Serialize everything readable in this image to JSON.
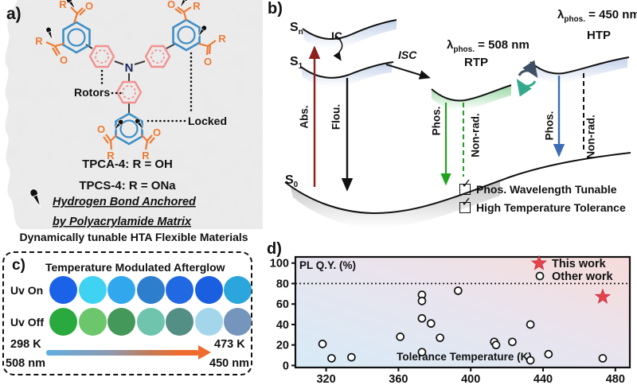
{
  "chart_data": {
    "type": "scatter",
    "panel": "d",
    "xlabel": "Tolerance Temperature (K)",
    "ylabel": "PL Q.Y. (%)",
    "xticks": [
      320,
      360,
      400,
      440,
      480
    ],
    "yticks": [
      0,
      20,
      40,
      60,
      80,
      100
    ],
    "xlim": [
      303,
      488
    ],
    "ylim": [
      -2,
      106
    ],
    "grid": false,
    "reference_line": {
      "y": 80,
      "style": "dotted"
    },
    "legend": {
      "position": "top-right"
    },
    "background_gradient": [
      "#d7ebf7",
      "#f7dbd9"
    ],
    "series": [
      {
        "name": "This work",
        "marker": "star",
        "color": "#e8434d",
        "points": [
          [
            473,
            67
          ]
        ]
      },
      {
        "name": "Other work",
        "marker": "open-circle",
        "color": "#111111",
        "points": [
          [
            318,
            21
          ],
          [
            323,
            7
          ],
          [
            334,
            8
          ],
          [
            361,
            28
          ],
          [
            373,
            69
          ],
          [
            373,
            63
          ],
          [
            373,
            46
          ],
          [
            378,
            41
          ],
          [
            373,
            13
          ],
          [
            383,
            27
          ],
          [
            393,
            73
          ],
          [
            413,
            23
          ],
          [
            414,
            20
          ],
          [
            423,
            23
          ],
          [
            433,
            40
          ],
          [
            433,
            5
          ],
          [
            443,
            11
          ],
          [
            473,
            7
          ]
        ]
      }
    ]
  },
  "figure": {
    "panel_a": {
      "label": "a)",
      "molecule": {
        "n": "N",
        "r": "R",
        "o": "O"
      },
      "annotations": {
        "rotors": "Rotors",
        "locked": "Locked"
      },
      "compounds": [
        "TPCA-4: R = OH",
        "TPCS-4: R = ONa"
      ],
      "anchor_note": [
        "Hydrogen Bond Anchored",
        "by Polyacrylamide Matrix"
      ],
      "caption": "Dynamically tunable HTA Flexible Materials",
      "icons": {
        "pin": "push-pin"
      }
    },
    "panel_b": {
      "label": "b)",
      "states": {
        "s": "S",
        "sub_n": "n",
        "sub_1": "1",
        "sub_0": "0"
      },
      "transitions": {
        "ic": "IC",
        "isc": "ISC",
        "abs": "Abs.",
        "flou": "Flou.",
        "phos": "Phos.",
        "nonrad": "Non-rad."
      },
      "rtp": {
        "lambda": "λ",
        "lambda_sub": "phos.",
        "lambda_eq": " = 508 nm",
        "name": "RTP"
      },
      "htp": {
        "lambda": "λ",
        "lambda_sub": "phos.",
        "lambda_eq": " = 450 nm",
        "name": "HTP"
      },
      "check_glyph": "✓",
      "checks": [
        "Phos. Wavelength Tunable",
        "High Temperature Tolerance"
      ]
    },
    "panel_c": {
      "label": "c)",
      "title": "Temperature Modulated Afterglow",
      "rows": [
        {
          "label": "Uv On",
          "colors": [
            "#1a63e8",
            "#40d2f2",
            "#31a7ee",
            "#2d7ecd",
            "#2169e3",
            "#1a5fe0",
            "#2aa6dc"
          ]
        },
        {
          "label": "Uv Off",
          "colors": [
            "#2aa93e",
            "#6cc76c",
            "#44985a",
            "#6fc4ae",
            "#548f85",
            "#a3d6ea",
            "#7595bd"
          ]
        }
      ],
      "temp_start": "298 K",
      "temp_end": "473 K",
      "wavelength_start": "508 nm",
      "wavelength_end": "450 nm"
    },
    "panel_d": {
      "label": "d)"
    }
  }
}
